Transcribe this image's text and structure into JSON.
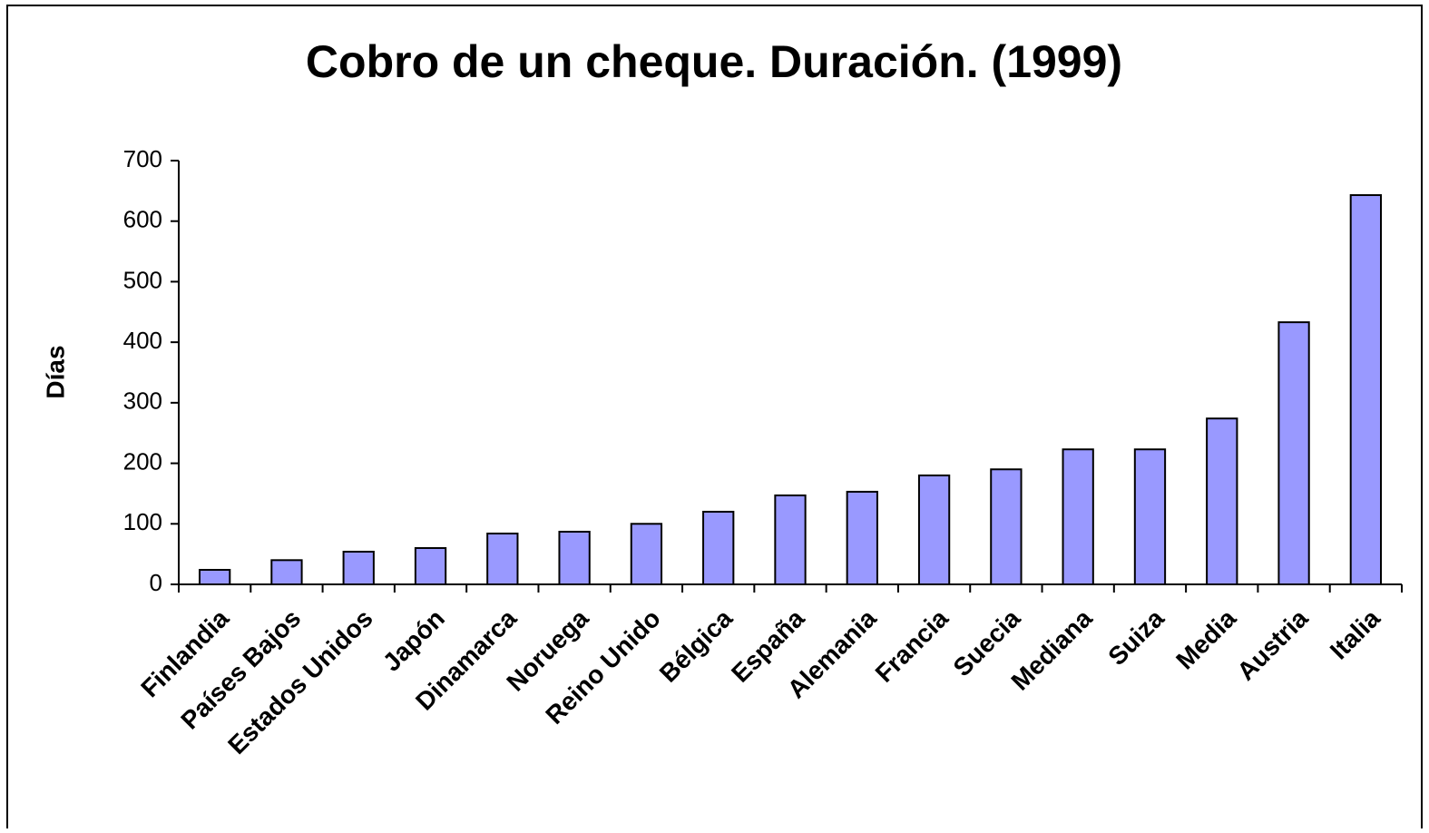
{
  "chart_data": {
    "type": "bar",
    "title": "Cobro de un cheque. Duración. (1999)",
    "y_label": "Días",
    "categories": [
      "Finlandia",
      "Países Bajos",
      "Estados Unidos",
      "Japón",
      "Dinamarca",
      "Noruega",
      "Reino Unido",
      "Bélgica",
      "España",
      "Alemania",
      "Francia",
      "Suecia",
      "Mediana",
      "Suiza",
      "Media",
      "Austria",
      "Italia"
    ],
    "values": [
      24,
      40,
      54,
      60,
      84,
      87,
      100,
      120,
      147,
      153,
      180,
      190,
      223,
      223,
      274,
      433,
      643
    ],
    "color": "#9999ff",
    "ylim": [
      0,
      700
    ],
    "yticks": [
      0,
      100,
      200,
      300,
      400,
      500,
      600,
      700
    ],
    "grid": false
  }
}
